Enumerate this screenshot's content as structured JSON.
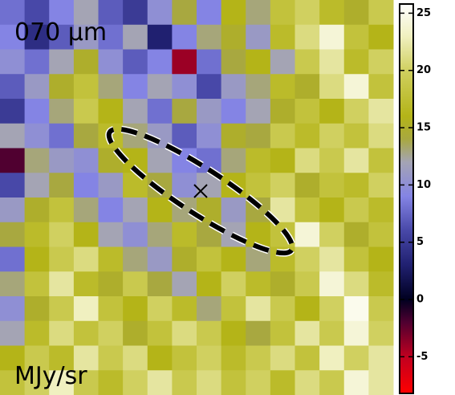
{
  "chart_data": {
    "type": "heatmap",
    "title": "070 μm",
    "units": "MJy/sr",
    "z": [
      [
        8,
        6,
        9,
        12,
        7,
        5,
        10,
        14,
        9,
        16,
        13,
        18,
        20,
        17,
        15,
        19
      ],
      [
        9,
        4,
        7,
        11,
        8,
        12,
        3,
        9,
        13,
        15,
        11,
        17,
        21,
        24,
        18,
        16
      ],
      [
        10,
        8,
        12,
        15,
        10,
        7,
        9,
        -4,
        8,
        14,
        16,
        12,
        19,
        22,
        17,
        20
      ],
      [
        7,
        11,
        15,
        18,
        13,
        9,
        12,
        10,
        6,
        11,
        13,
        17,
        15,
        21,
        24,
        18
      ],
      [
        5,
        9,
        13,
        19,
        16,
        12,
        8,
        14,
        11,
        9,
        12,
        15,
        18,
        16,
        20,
        22
      ],
      [
        12,
        10,
        8,
        14,
        17,
        13,
        11,
        7,
        10,
        15,
        14,
        19,
        17,
        20,
        18,
        21
      ],
      [
        -2,
        13,
        11,
        10,
        15,
        16,
        12,
        9,
        8,
        13,
        17,
        16,
        21,
        19,
        22,
        18
      ],
      [
        6,
        12,
        14,
        9,
        11,
        17,
        14,
        10,
        12,
        16,
        18,
        20,
        15,
        18,
        17,
        20
      ],
      [
        11,
        15,
        18,
        13,
        9,
        12,
        16,
        13,
        15,
        11,
        14,
        22,
        18,
        16,
        19,
        17
      ],
      [
        14,
        17,
        20,
        16,
        12,
        10,
        13,
        17,
        14,
        12,
        16,
        18,
        24,
        20,
        15,
        18
      ],
      [
        8,
        16,
        19,
        21,
        17,
        13,
        11,
        15,
        18,
        16,
        13,
        17,
        20,
        22,
        18,
        16
      ],
      [
        13,
        18,
        22,
        17,
        15,
        19,
        14,
        12,
        16,
        20,
        17,
        15,
        19,
        24,
        21,
        17
      ],
      [
        10,
        15,
        19,
        23,
        18,
        16,
        20,
        17,
        13,
        18,
        22,
        19,
        16,
        20,
        25,
        19
      ],
      [
        12,
        17,
        21,
        18,
        20,
        15,
        18,
        21,
        19,
        16,
        14,
        18,
        22,
        19,
        24,
        20
      ],
      [
        16,
        19,
        17,
        22,
        19,
        21,
        16,
        18,
        20,
        17,
        19,
        21,
        18,
        23,
        20,
        22
      ],
      [
        18,
        20,
        23,
        19,
        17,
        20,
        22,
        19,
        21,
        18,
        20,
        17,
        21,
        19,
        24,
        22
      ]
    ],
    "clim": [
      -8.2,
      25.8
    ],
    "cticks": [
      -5,
      0,
      5,
      10,
      15,
      20,
      25
    ],
    "colorscale": [
      [
        -8.2,
        "#ff0000"
      ],
      [
        -5,
        "#c00020"
      ],
      [
        -2,
        "#500030"
      ],
      [
        0,
        "#000020"
      ],
      [
        3,
        "#202070"
      ],
      [
        6,
        "#4848a8"
      ],
      [
        9,
        "#8484e4"
      ],
      [
        12,
        "#a4a4b4"
      ],
      [
        14,
        "#a8a840"
      ],
      [
        16,
        "#b4b418"
      ],
      [
        20,
        "#d0d060"
      ],
      [
        23,
        "#f0f0c0"
      ],
      [
        25.8,
        "#ffffff"
      ]
    ]
  }
}
